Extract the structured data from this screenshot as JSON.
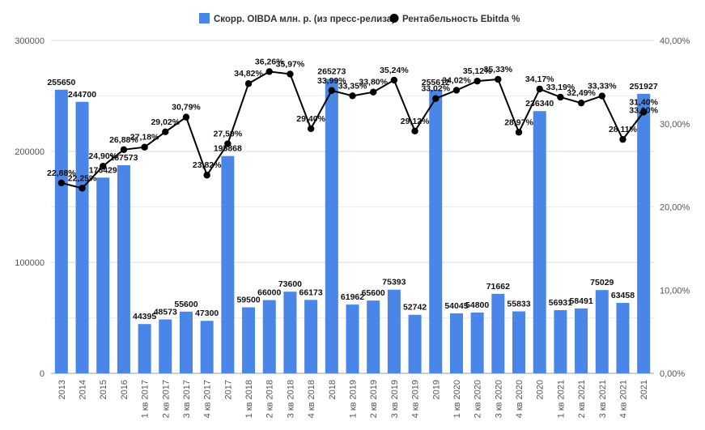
{
  "chart_data": {
    "type": "bar",
    "categories": [
      "2013",
      "2014",
      "2015",
      "2016",
      "1 кв 2017",
      "2 кв 2017",
      "3 кв 2017",
      "4 кв 2017",
      "2017",
      "1 кв 2018",
      "2 кв 2018",
      "3 кв 2018",
      "4 кв 2018",
      "2018",
      "1 кв 2019",
      "2 кв 2019",
      "3 кв 2019",
      "4 кв 2019",
      "2019",
      "1 кв 2020",
      "2 кв 2020",
      "3 кв 2020",
      "4 кв 2020",
      "2020",
      "1 кв 2021",
      "2 кв 2021",
      "3 кв 2021",
      "4 кв 2021",
      "2021"
    ],
    "series": [
      {
        "name": "Скорр. OIBDA млн. р. (из пресс-релиза)",
        "type": "bar",
        "color": "#4a86e8",
        "values": [
          255650,
          244700,
          176429,
          187573,
          44395,
          48573,
          55600,
          47300,
          195868,
          59500,
          66000,
          73600,
          66173,
          265273,
          61962,
          65600,
          75393,
          52742,
          255612,
          54045,
          54800,
          71662,
          55833,
          236340,
          56931,
          58491,
          75029,
          63458,
          251927
        ],
        "labels": [
          "255650",
          "244700",
          "176429",
          "187573",
          "44395",
          "48573",
          "55600",
          "47300",
          "195868",
          "59500",
          "66000",
          "73600",
          "66173",
          "265273",
          "61962",
          "65600",
          "75393",
          "52742",
          "255612",
          "54045",
          "54800",
          "71662",
          "55833",
          "236340",
          "56931",
          "58491",
          "75029",
          "63458",
          "251927"
        ]
      },
      {
        "name": "Рентабельность Ebitda %",
        "type": "line",
        "color": "#000000",
        "axis": "right",
        "values": [
          22.88,
          22.25,
          24.9,
          26.88,
          27.18,
          29.02,
          30.79,
          23.82,
          27.59,
          34.82,
          36.26,
          35.97,
          29.4,
          33.99,
          33.35,
          33.8,
          35.24,
          29.12,
          33.02,
          34.02,
          35.12,
          35.33,
          28.97,
          34.17,
          33.19,
          32.49,
          33.33,
          28.11,
          31.4
        ],
        "labels": [
          "22,88%",
          "22,25%",
          "24,90%",
          "26,88%",
          "27,18%",
          "29,02%",
          "30,79%",
          "23,82%",
          "27,59%",
          "34,82%",
          "36,26%",
          "35,97%",
          "29,40%",
          "33,99%",
          "33,35%",
          "33,80%",
          "35,24%",
          "29,12%",
          "33,02%",
          "34,02%",
          "35,12%",
          "35,33%",
          "28,97%",
          "34,17%",
          "33,19%",
          "32,49%",
          "33,33%",
          "28,11%",
          "31,40%"
        ]
      }
    ],
    "extra_labels": [
      "33,00%"
    ],
    "y_left": {
      "ticks": [
        "0",
        "100000",
        "200000",
        "300000"
      ],
      "ylim": [
        0,
        300000
      ]
    },
    "y_right": {
      "ticks": [
        "0,00%",
        "10,00%",
        "20,00%",
        "30,00%",
        "40,00%"
      ],
      "ylim": [
        0,
        40
      ]
    },
    "grid": true,
    "legend_position": "top-center",
    "title": "",
    "xlabel": "",
    "ylabel": ""
  }
}
